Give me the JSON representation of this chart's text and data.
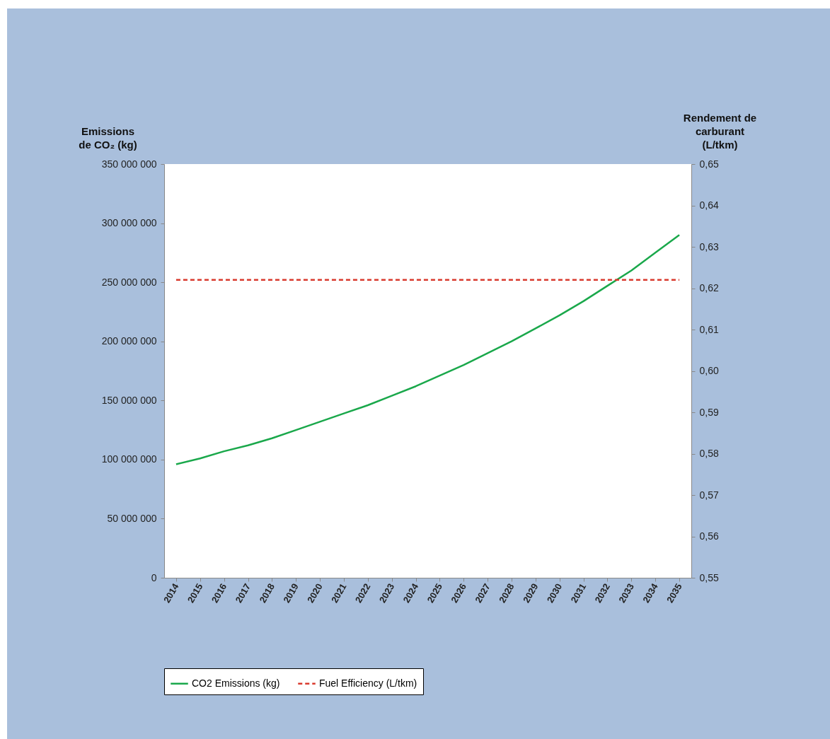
{
  "chart_data": {
    "type": "line",
    "ylabel": "Emissions de CO₂ (kg)",
    "y2label": "Rendement de carburant (L/tkm)",
    "categories": [
      "2014",
      "2015",
      "2016",
      "2017",
      "2018",
      "2019",
      "2020",
      "2021",
      "2022",
      "2023",
      "2024",
      "2025",
      "2026",
      "2027",
      "2028",
      "2029",
      "2030",
      "2031",
      "2032",
      "2033",
      "2034",
      "2035"
    ],
    "series": [
      {
        "name": "CO2 Emissions (kg)",
        "color": "#1aa84b",
        "line_style": "solid",
        "values": [
          96000000,
          101000000,
          107000000,
          112000000,
          118000000,
          125000000,
          132000000,
          139000000,
          146000000,
          154000000,
          162000000,
          171000000,
          180000000,
          190000000,
          200000000,
          211000000,
          222000000,
          234000000,
          247000000,
          260000000,
          275000000,
          290000000
        ]
      },
      {
        "name": "Fuel Efficiency (L/tkm)",
        "color": "#d93a2e",
        "line_style": "dashed",
        "axis": "y2",
        "values": [
          0.622,
          0.622,
          0.622,
          0.622,
          0.622,
          0.622,
          0.622,
          0.622,
          0.622,
          0.622,
          0.622,
          0.622,
          0.622,
          0.622,
          0.622,
          0.622,
          0.622,
          0.622,
          0.622,
          0.622,
          0.622,
          0.622
        ]
      }
    ],
    "ylim": [
      0,
      350000000
    ],
    "yticks": [
      {
        "value": 0,
        "label": "0"
      },
      {
        "value": 50000000,
        "label": "50 000 000"
      },
      {
        "value": 100000000,
        "label": "100 000 000"
      },
      {
        "value": 150000000,
        "label": "150 000 000"
      },
      {
        "value": 200000000,
        "label": "200 000 000"
      },
      {
        "value": 250000000,
        "label": "250 000 000"
      },
      {
        "value": 300000000,
        "label": "300 000 000"
      },
      {
        "value": 350000000,
        "label": "350 000 000"
      }
    ],
    "y2lim": [
      0.55,
      0.65
    ],
    "y2ticks": [
      {
        "value": 0.55,
        "label": "0,55"
      },
      {
        "value": 0.56,
        "label": "0,56"
      },
      {
        "value": 0.57,
        "label": "0,57"
      },
      {
        "value": 0.58,
        "label": "0,58"
      },
      {
        "value": 0.59,
        "label": "0,59"
      },
      {
        "value": 0.6,
        "label": "0,60"
      },
      {
        "value": 0.61,
        "label": "0,61"
      },
      {
        "value": 0.62,
        "label": "0,62"
      },
      {
        "value": 0.63,
        "label": "0,63"
      },
      {
        "value": 0.64,
        "label": "0,64"
      },
      {
        "value": 0.65,
        "label": "0,65"
      }
    ],
    "legend": "bottom",
    "grid": false
  }
}
